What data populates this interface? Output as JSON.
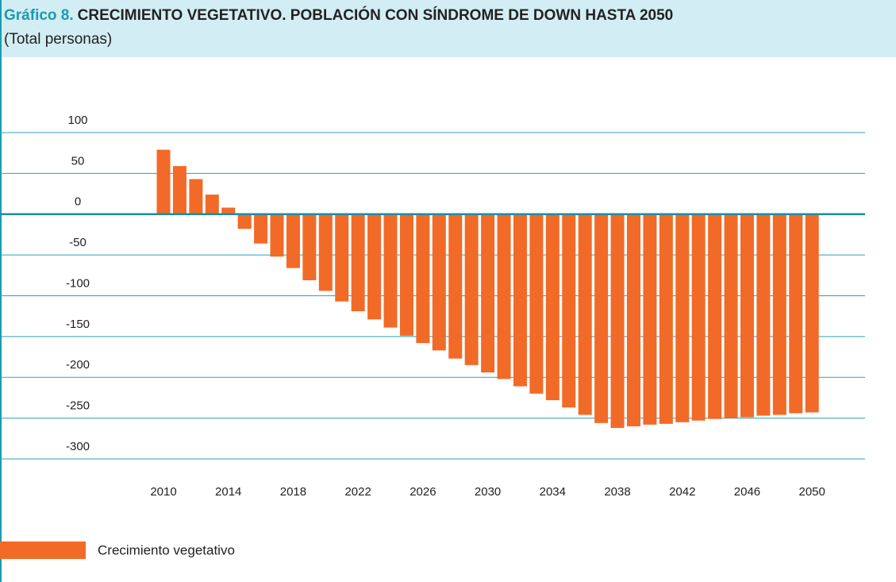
{
  "chart_data": {
    "type": "bar",
    "title_label": "Gráfico 8.",
    "title": "CRECIMIENTO VEGETATIVO. POBLACIÓN CON SÍNDROME DE DOWN HASTA 2050",
    "subtitle": "(Total personas)",
    "categories": [
      2010,
      null,
      null,
      null,
      2014,
      null,
      null,
      null,
      2018,
      null,
      null,
      null,
      2022,
      null,
      null,
      null,
      2026,
      null,
      null,
      null,
      2030,
      null,
      null,
      null,
      2034,
      null,
      null,
      null,
      2038,
      null,
      null,
      null,
      2042,
      null,
      null,
      null,
      2046,
      null,
      null,
      null,
      2050
    ],
    "series": [
      {
        "name": "Crecimiento vegetativo",
        "color": "#f26a27",
        "values": [
          79,
          59,
          43,
          24,
          8,
          -18,
          -36,
          -52,
          -66,
          -81,
          -94,
          -107,
          -119,
          -129,
          -139,
          -149,
          -158,
          -167,
          -177,
          -185,
          -194,
          -202,
          -211,
          -220,
          -228,
          -237,
          -246,
          -256,
          -262,
          -260,
          -258,
          -257,
          -255,
          -253,
          -251,
          -250,
          -249,
          -247,
          -246,
          -244,
          -243
        ]
      }
    ],
    "ylim": [
      -300,
      100
    ],
    "yticks": [
      100,
      50,
      0,
      -50,
      -100,
      -150,
      -200,
      -250,
      -300
    ],
    "grid": true
  }
}
